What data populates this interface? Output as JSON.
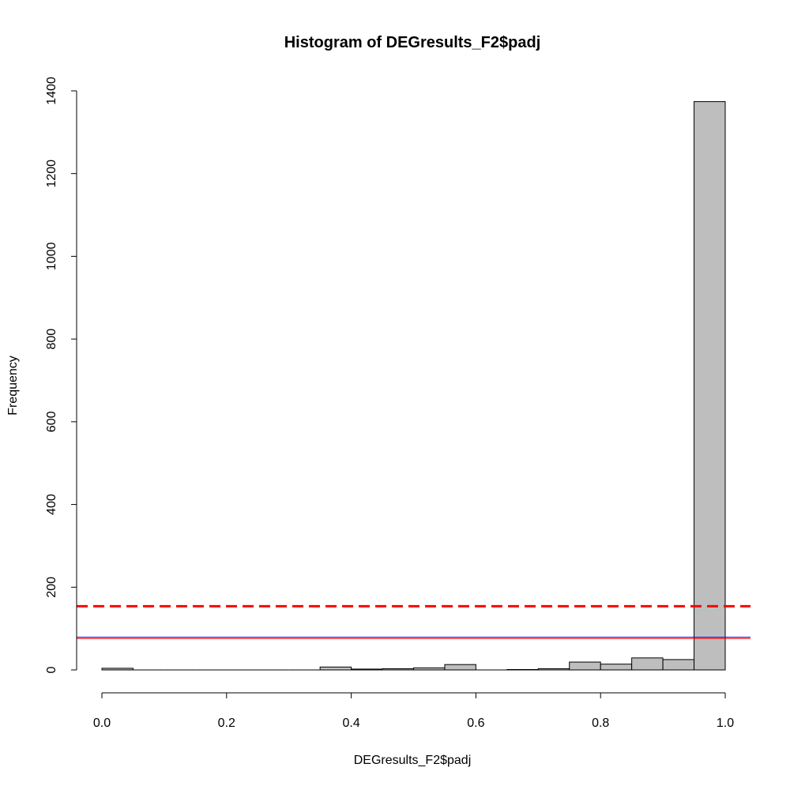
{
  "chart_data": {
    "type": "bar",
    "title": "Histogram of DEGresults_F2$padj",
    "xlabel": "DEGresults_F2$padj",
    "ylabel": "Frequency",
    "xlim": [
      0.0,
      1.0
    ],
    "ylim": [
      0,
      1400
    ],
    "bin_width": 0.05,
    "bin_starts": [
      0.0,
      0.05,
      0.1,
      0.15,
      0.2,
      0.25,
      0.3,
      0.35,
      0.4,
      0.45,
      0.5,
      0.55,
      0.6,
      0.65,
      0.7,
      0.75,
      0.8,
      0.85,
      0.9,
      0.95
    ],
    "values": [
      4,
      0,
      0,
      0,
      0,
      0,
      0,
      7,
      2,
      3,
      5,
      13,
      0,
      1,
      3,
      19,
      14,
      29,
      25,
      1374
    ],
    "x_ticks": [
      "0.0",
      "0.2",
      "0.4",
      "0.6",
      "0.8",
      "1.0"
    ],
    "x_tick_values": [
      0.0,
      0.2,
      0.4,
      0.6,
      0.8,
      1.0
    ],
    "y_ticks": [
      "0",
      "200",
      "400",
      "600",
      "800",
      "1000",
      "1200",
      "1400"
    ],
    "y_tick_values": [
      0,
      200,
      400,
      600,
      800,
      1000,
      1200,
      1400
    ],
    "hlines": [
      {
        "y": 154,
        "color": "#ff0000",
        "style": "dashed"
      },
      {
        "y": 79,
        "color": "#0000ff",
        "style": "solid"
      },
      {
        "y": 76,
        "color": "#ff0000",
        "style": "solid"
      }
    ],
    "bar_fill": "#bebebe",
    "bar_stroke": "#000000",
    "grid": false
  }
}
